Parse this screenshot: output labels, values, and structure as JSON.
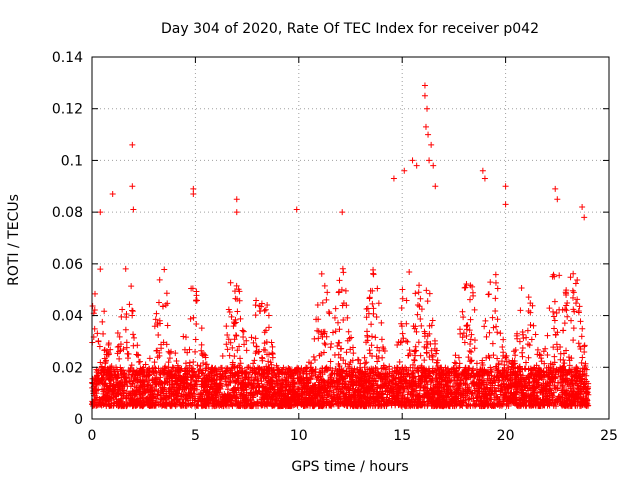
{
  "chart_data": {
    "type": "scatter",
    "title": "Day 304 of 2020, Rate Of TEC Index for receiver p042",
    "xlabel": "GPS time / hours",
    "ylabel": "ROTI / TECUs",
    "xlim": [
      0,
      25
    ],
    "ylim": [
      0,
      0.14
    ],
    "xticks": [
      0,
      5,
      10,
      15,
      20,
      25
    ],
    "xtick_labels": [
      "0",
      "5",
      "10",
      "15",
      "20",
      "25"
    ],
    "yticks": [
      0,
      0.02,
      0.04,
      0.06,
      0.08,
      0.1,
      0.12,
      0.14
    ],
    "ytick_labels": [
      "0",
      "0.02",
      "0.04",
      "0.06",
      "0.08",
      "0.1",
      "0.12",
      "0.14"
    ],
    "grid": true,
    "marker": "plus",
    "series": [
      {
        "name": "ROTI",
        "color": "#ff0000",
        "x_range": [
          0,
          24
        ],
        "baseline_range": [
          0.005,
          0.02
        ],
        "typical_max": 0.06,
        "outliers": [
          {
            "x": 1.95,
            "y": 0.106
          },
          {
            "x": 1.95,
            "y": 0.09
          },
          {
            "x": 2.0,
            "y": 0.081
          },
          {
            "x": 1.0,
            "y": 0.087
          },
          {
            "x": 0.4,
            "y": 0.08
          },
          {
            "x": 4.9,
            "y": 0.089
          },
          {
            "x": 4.9,
            "y": 0.087
          },
          {
            "x": 7.0,
            "y": 0.085
          },
          {
            "x": 7.0,
            "y": 0.08
          },
          {
            "x": 9.9,
            "y": 0.081
          },
          {
            "x": 12.1,
            "y": 0.08
          },
          {
            "x": 14.6,
            "y": 0.093
          },
          {
            "x": 15.1,
            "y": 0.096
          },
          {
            "x": 15.5,
            "y": 0.1
          },
          {
            "x": 15.7,
            "y": 0.098
          },
          {
            "x": 16.1,
            "y": 0.129
          },
          {
            "x": 16.1,
            "y": 0.125
          },
          {
            "x": 16.2,
            "y": 0.12
          },
          {
            "x": 16.15,
            "y": 0.113
          },
          {
            "x": 16.25,
            "y": 0.11
          },
          {
            "x": 16.3,
            "y": 0.1
          },
          {
            "x": 16.4,
            "y": 0.106
          },
          {
            "x": 16.5,
            "y": 0.098
          },
          {
            "x": 16.6,
            "y": 0.09
          },
          {
            "x": 18.9,
            "y": 0.096
          },
          {
            "x": 19.0,
            "y": 0.093
          },
          {
            "x": 20.0,
            "y": 0.09
          },
          {
            "x": 20.0,
            "y": 0.083
          },
          {
            "x": 22.4,
            "y": 0.089
          },
          {
            "x": 22.5,
            "y": 0.085
          },
          {
            "x": 23.7,
            "y": 0.082
          },
          {
            "x": 23.8,
            "y": 0.078
          }
        ]
      }
    ]
  }
}
